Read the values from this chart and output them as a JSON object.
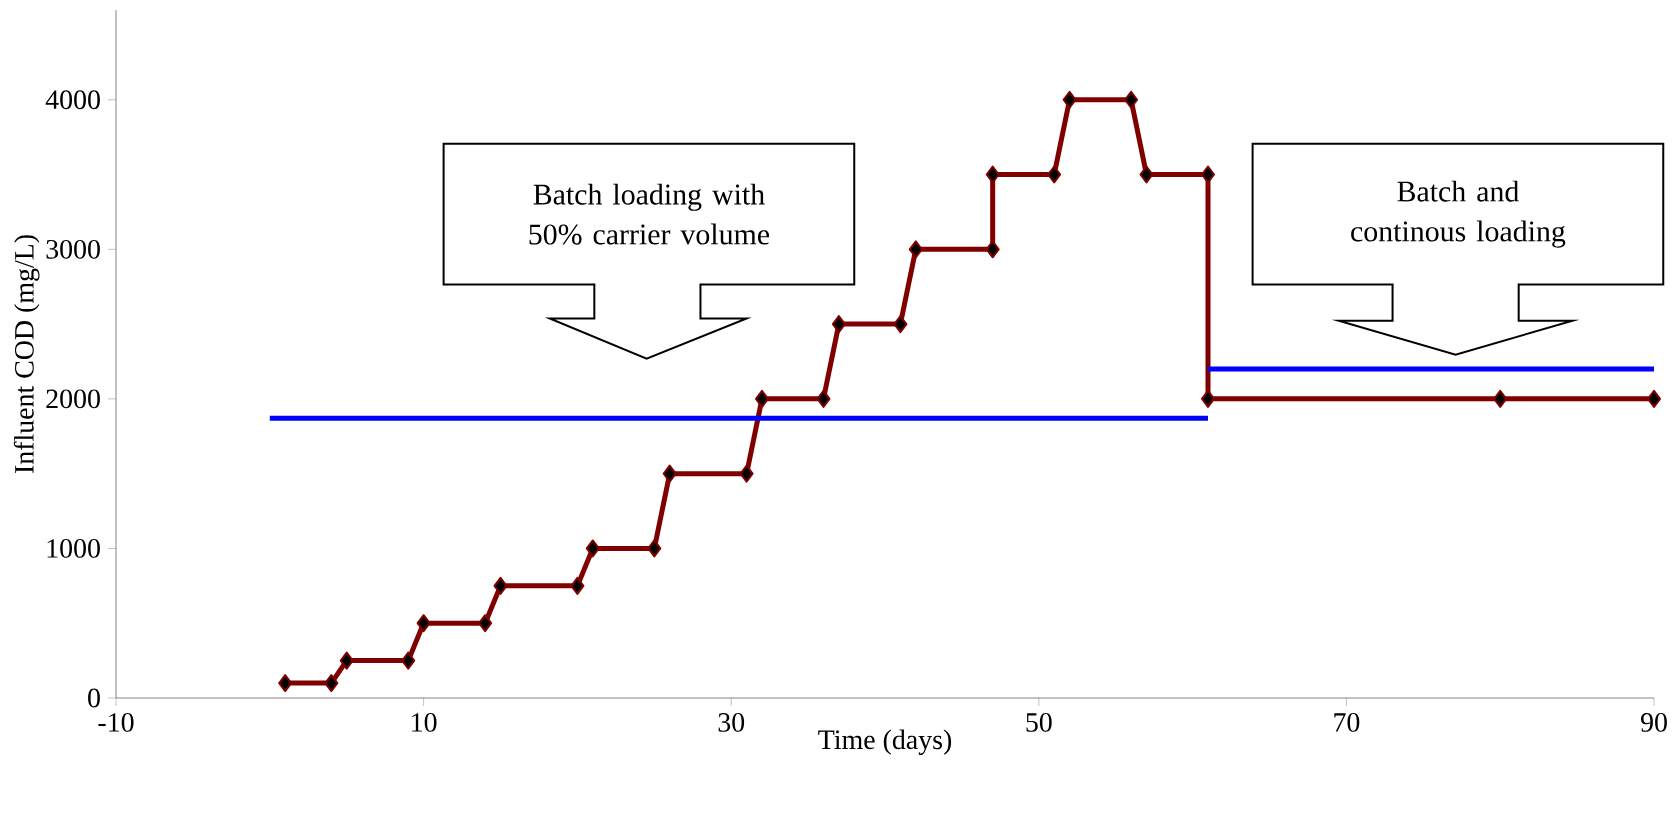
{
  "chart_data": {
    "type": "line",
    "xlabel": "Time (days)",
    "ylabel": "Influent COD (mg/L)",
    "xlim": [
      -10,
      90
    ],
    "ylim": [
      0,
      4600
    ],
    "xticks": [
      -10,
      10,
      30,
      50,
      70,
      90
    ],
    "yticks": [
      0,
      1000,
      2000,
      3000,
      4000
    ],
    "grid": false,
    "marker": "diamond",
    "line_style": "solid",
    "series": [
      {
        "color": "#800000",
        "x": [
          1,
          4,
          5,
          9,
          10,
          14,
          15,
          20,
          21,
          25,
          26,
          31,
          32,
          36,
          37,
          41,
          42,
          47,
          47,
          51,
          52,
          56,
          57,
          61,
          61,
          80,
          90
        ],
        "values": [
          100,
          100,
          250,
          250,
          500,
          500,
          750,
          750,
          1000,
          1000,
          1500,
          1500,
          2000,
          2000,
          2500,
          2500,
          3000,
          3000,
          3500,
          3500,
          4000,
          4000,
          3500,
          3500,
          2000,
          2000,
          2000
        ]
      },
      {
        "color": "#0000ff",
        "marker": "none",
        "x": [
          0,
          61
        ],
        "values": [
          1870,
          1870
        ]
      },
      {
        "color": "#0000ff",
        "marker": "none",
        "x": [
          61,
          90
        ],
        "values": [
          2200,
          2200
        ]
      }
    ],
    "annotations": [
      "Batch loading with 50% carrier volume",
      "Batch and continous loading"
    ]
  }
}
